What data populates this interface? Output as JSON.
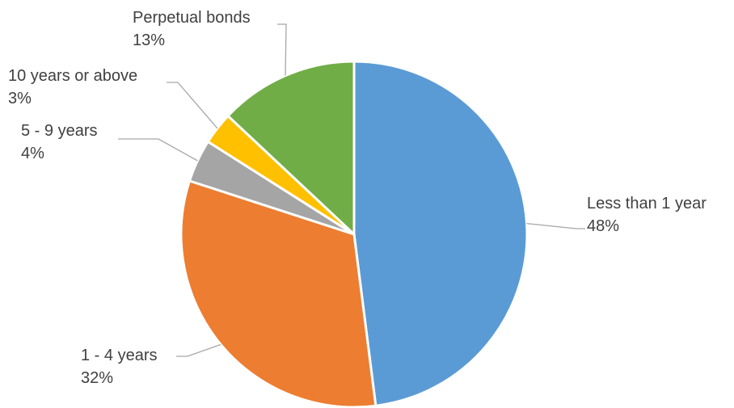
{
  "chart_data": {
    "type": "pie",
    "title": "",
    "start_angle_deg": 0,
    "direction": "clockwise",
    "legend": "none",
    "slices": [
      {
        "label": "Less than 1 year",
        "value": 48,
        "value_label": "48%",
        "color": "#5b9bd5"
      },
      {
        "label": "1 - 4 years",
        "value": 32,
        "value_label": "32%",
        "color": "#ed7d31"
      },
      {
        "label": "5 - 9 years",
        "value": 4,
        "value_label": "4%",
        "color": "#a5a5a5"
      },
      {
        "label": "10 years or above",
        "value": 3,
        "value_label": "3%",
        "color": "#ffc000"
      },
      {
        "label": "Perpetual bonds",
        "value": 13,
        "value_label": "13%",
        "color": "#70ad47"
      }
    ]
  }
}
